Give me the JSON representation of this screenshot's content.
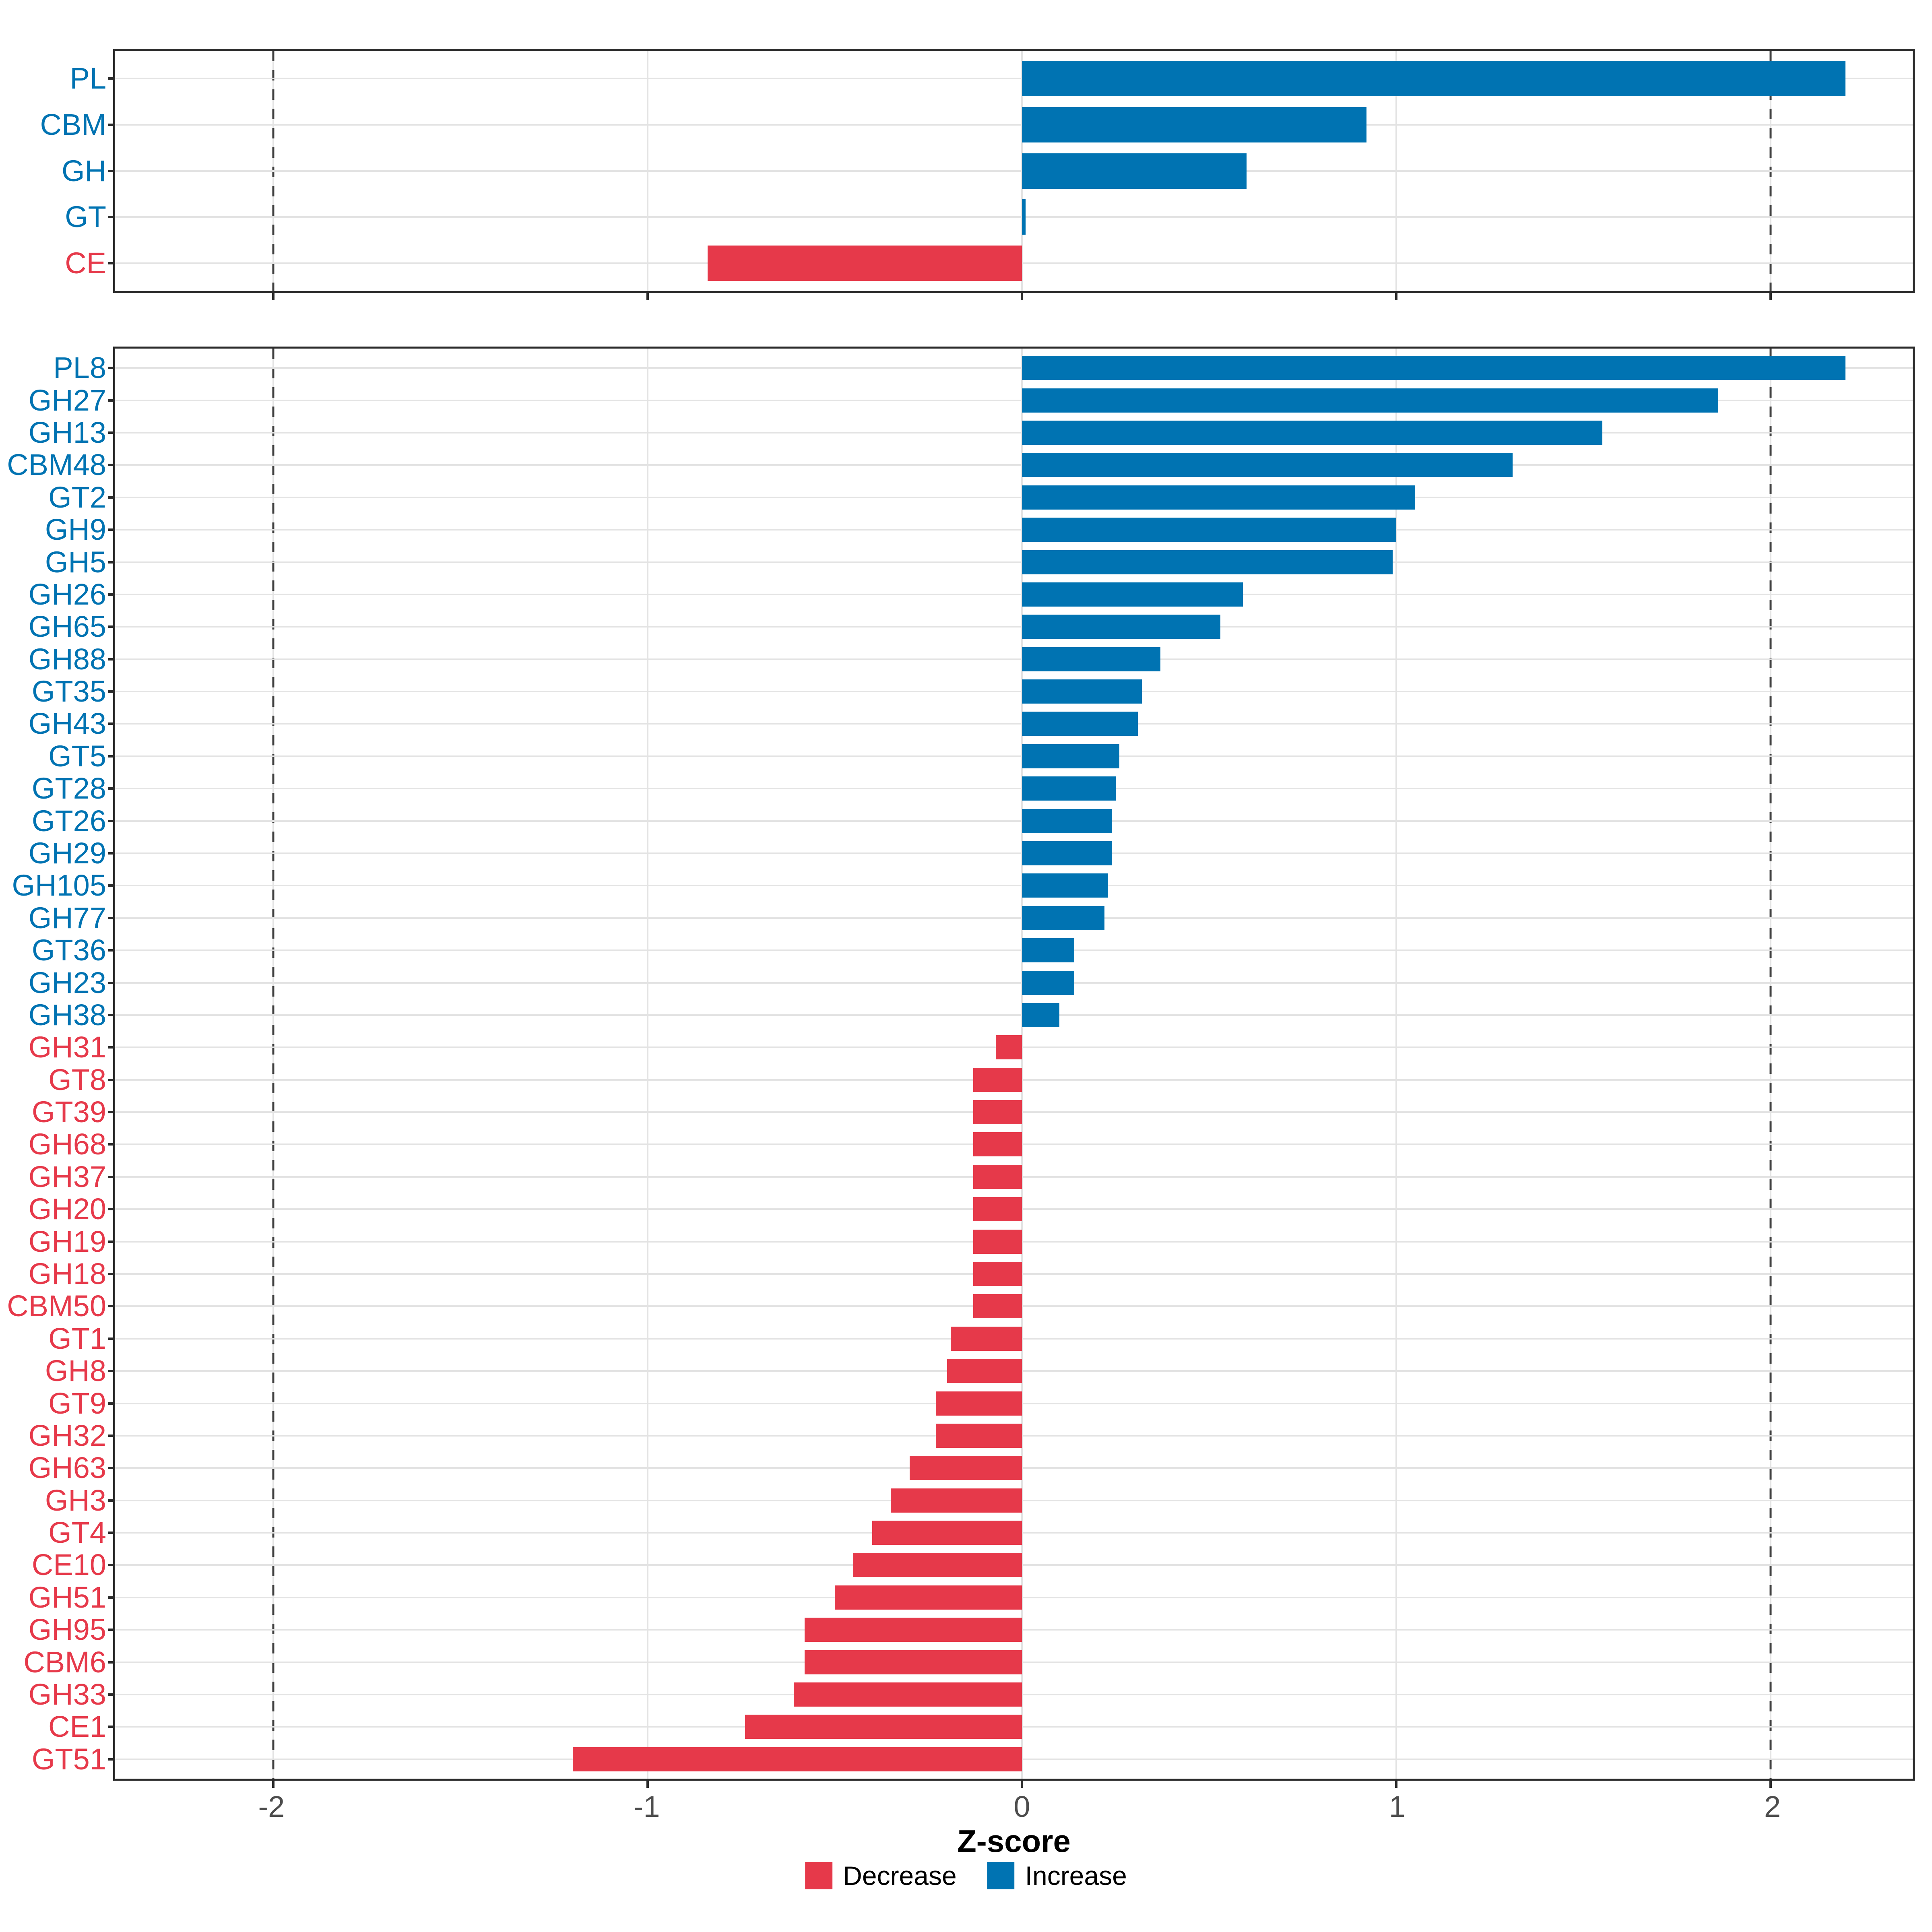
{
  "figure": {
    "background": "#ffffff",
    "x_axis": {
      "title": "Z-score",
      "tick_labels": [
        "-2",
        "-1",
        "0",
        "1",
        "2"
      ],
      "tick_values": [
        -2,
        -1,
        0,
        1,
        2
      ],
      "dashed_guides": [
        -2,
        2
      ],
      "xlim": [
        -2.42,
        2.41
      ]
    },
    "legend": {
      "items": [
        {
          "label": "Decrease",
          "color": "#e6394a"
        },
        {
          "label": "Increase",
          "color": "#0073b2"
        }
      ]
    },
    "colors": {
      "increase": "#0073b2",
      "decrease": "#e6394a",
      "gridline": "#e3e3e3",
      "dashed_guide": "#3f3f3f",
      "panel_border": "#2b2b2b",
      "tick_label": "#4d4d4d"
    }
  },
  "chart_data": [
    {
      "type": "bar",
      "orientation": "horizontal",
      "panel": "cazyme-class",
      "categories": [
        "PL",
        "CBM",
        "GH",
        "GT",
        "CE"
      ],
      "values": [
        2.2,
        0.92,
        0.6,
        0.01,
        -0.84
      ],
      "directions": [
        "Increase",
        "Increase",
        "Increase",
        "Increase",
        "Decrease"
      ],
      "xlabel": "Z-score",
      "xlim": [
        -2.42,
        2.41
      ],
      "grid": "major",
      "legend_position": "none"
    },
    {
      "type": "bar",
      "orientation": "horizontal",
      "panel": "cazyme-family",
      "categories": [
        "PL8",
        "GH27",
        "GH13",
        "CBM48",
        "GT2",
        "GH9",
        "GH5",
        "GH26",
        "GH65",
        "GH88",
        "GT35",
        "GH43",
        "GT5",
        "GT28",
        "GT26",
        "GH29",
        "GH105",
        "GH77",
        "GT36",
        "GH23",
        "GH38",
        "GH31",
        "GT8",
        "GT39",
        "GH68",
        "GH37",
        "GH20",
        "GH19",
        "GH18",
        "CBM50",
        "GT1",
        "GH8",
        "GT9",
        "GH32",
        "GH63",
        "GH3",
        "GT4",
        "CE10",
        "GH51",
        "GH95",
        "CBM6",
        "GH33",
        "CE1",
        "GT51"
      ],
      "values": [
        2.2,
        1.86,
        1.55,
        1.31,
        1.05,
        1.0,
        0.99,
        0.59,
        0.53,
        0.37,
        0.32,
        0.31,
        0.26,
        0.25,
        0.24,
        0.24,
        0.23,
        0.22,
        0.14,
        0.14,
        0.1,
        -0.07,
        -0.13,
        -0.13,
        -0.13,
        -0.13,
        -0.13,
        -0.13,
        -0.13,
        -0.13,
        -0.19,
        -0.2,
        -0.23,
        -0.23,
        -0.3,
        -0.35,
        -0.4,
        -0.45,
        -0.5,
        -0.58,
        -0.58,
        -0.61,
        -0.74,
        -1.2
      ],
      "directions": [
        "Increase",
        "Increase",
        "Increase",
        "Increase",
        "Increase",
        "Increase",
        "Increase",
        "Increase",
        "Increase",
        "Increase",
        "Increase",
        "Increase",
        "Increase",
        "Increase",
        "Increase",
        "Increase",
        "Increase",
        "Increase",
        "Increase",
        "Increase",
        "Increase",
        "Decrease",
        "Decrease",
        "Decrease",
        "Decrease",
        "Decrease",
        "Decrease",
        "Decrease",
        "Decrease",
        "Decrease",
        "Decrease",
        "Decrease",
        "Decrease",
        "Decrease",
        "Decrease",
        "Decrease",
        "Decrease",
        "Decrease",
        "Decrease",
        "Decrease",
        "Decrease",
        "Decrease",
        "Decrease",
        "Decrease"
      ],
      "xlabel": "Z-score",
      "xlim": [
        -2.42,
        2.41
      ],
      "grid": "major",
      "legend_position": "bottom"
    }
  ]
}
